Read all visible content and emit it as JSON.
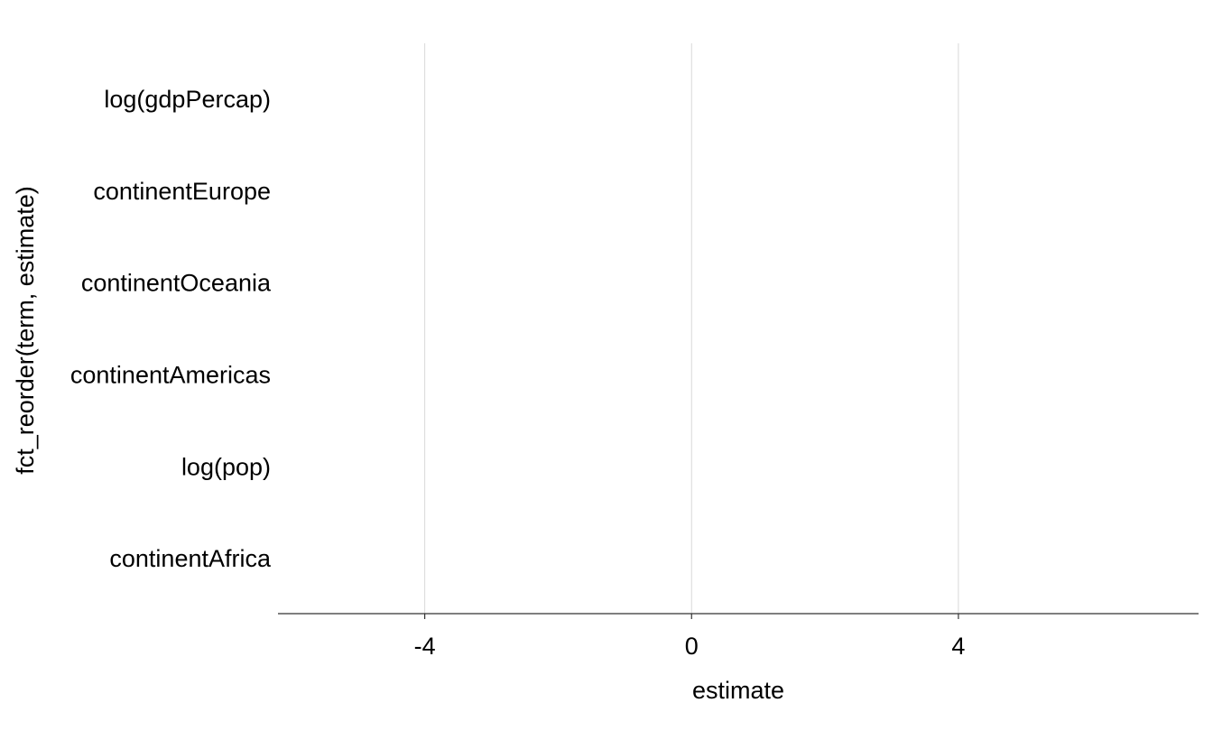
{
  "chart_data": {
    "type": "scatter",
    "title": "",
    "xlabel": "estimate",
    "ylabel": "fct_reorder(term, estimate)",
    "categories": [
      "continentAfrica",
      "log(pop)",
      "continentAmericas",
      "continentOceania",
      "continentEurope",
      "log(gdpPercap)"
    ],
    "x_ticks": [
      -4,
      0,
      4
    ],
    "xlim": [
      -6.2,
      7.6
    ],
    "grid": "vertical major",
    "legend": "none",
    "series": []
  }
}
